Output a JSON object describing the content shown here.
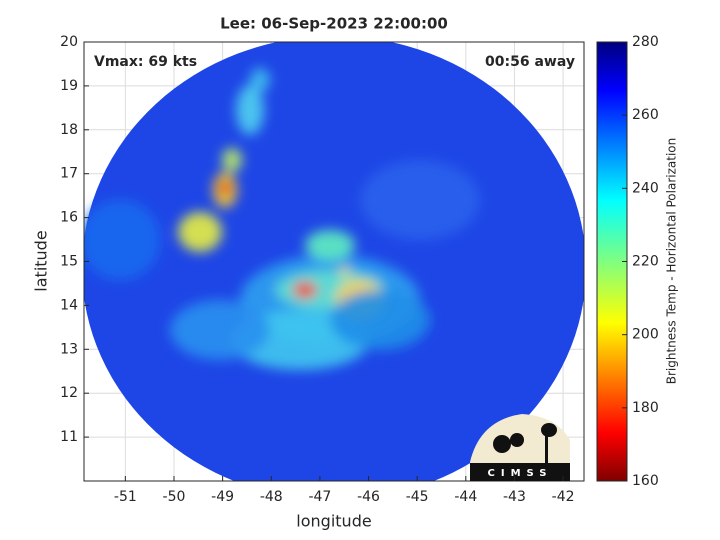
{
  "chart_data": {
    "type": "image",
    "title": "Lee: 06-Sep-2023 22:00:00",
    "annotations": [
      "Vmax: 69 kts",
      "00:56 away"
    ],
    "xlabel": "longitude",
    "ylabel": "latitude",
    "xlim": [
      -51.85,
      -41.57
    ],
    "xticks": [
      -51,
      -50,
      -49,
      -48,
      -47,
      -46,
      -45,
      -44,
      -43,
      -42
    ],
    "ylim": [
      10,
      20
    ],
    "yticks": [
      11,
      12,
      13,
      14,
      15,
      16,
      17,
      18,
      19,
      20
    ],
    "grid": true,
    "colorbar": {
      "label": "Brightness Temp - Horizontal Polarization",
      "colormap": "jet",
      "lim": [
        160,
        280
      ],
      "ticks": [
        160,
        180,
        200,
        220,
        240,
        260,
        280
      ]
    },
    "logo": "CIMSS"
  }
}
